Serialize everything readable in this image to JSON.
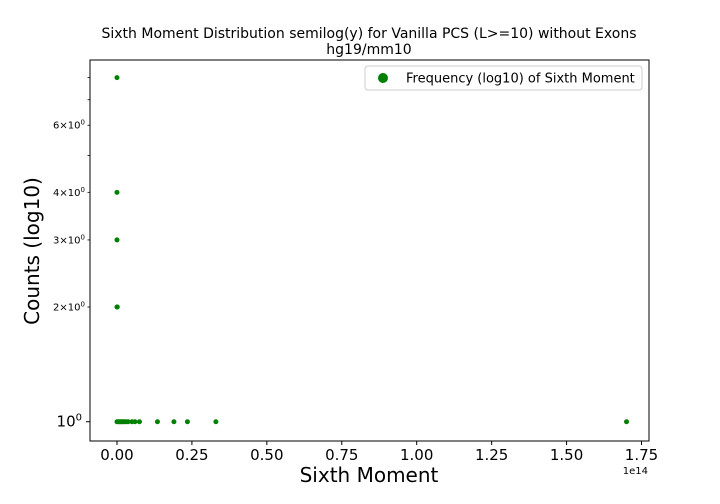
{
  "chart_data": {
    "type": "scatter",
    "title_line1": "Sixth Moment Distribution semilog(y) for Vanilla PCS (L>=10) without Exons",
    "title_line2": "hg19/mm10",
    "xlabel": "Sixth Moment",
    "ylabel": "Counts (log10)",
    "x_offset_label": "1e14",
    "x_scale_factor": 100000000000000.0,
    "yscale": "log",
    "xlim": [
      -0.09,
      1.775
    ],
    "ylim": [
      0.89,
      8.9
    ],
    "xticks": [
      0.0,
      0.25,
      0.5,
      0.75,
      1.0,
      1.25,
      1.5,
      1.75
    ],
    "xtick_labels": [
      "0.00",
      "0.25",
      "0.50",
      "0.75",
      "1.00",
      "1.25",
      "1.50",
      "1.75"
    ],
    "yticks_major": [
      {
        "value": 1,
        "base": "10",
        "exp": "0"
      }
    ],
    "yticks_minor_labeled": [
      {
        "value": 2,
        "mant": "2",
        "base": "10",
        "exp": "0"
      },
      {
        "value": 3,
        "mant": "3",
        "base": "10",
        "exp": "0"
      },
      {
        "value": 4,
        "mant": "4",
        "base": "10",
        "exp": "0"
      },
      {
        "value": 6,
        "mant": "6",
        "base": "10",
        "exp": "0"
      }
    ],
    "yticks_minor_unlabeled": [
      5,
      7,
      8
    ],
    "times_sign": "×",
    "legend": {
      "placement": "top-right",
      "label": "Frequency (log10) of Sixth Moment"
    },
    "series": [
      {
        "name": "Frequency (log10) of Sixth Moment",
        "color": "#008000",
        "points": [
          {
            "x": 0.0,
            "y": 8
          },
          {
            "x": 0.0,
            "y": 4
          },
          {
            "x": 0.0,
            "y": 3
          },
          {
            "x": 0.0,
            "y": 2
          },
          {
            "x": 0.001,
            "y": 2
          },
          {
            "x": 0.0,
            "y": 1
          },
          {
            "x": 0.004,
            "y": 1
          },
          {
            "x": 0.008,
            "y": 1
          },
          {
            "x": 0.012,
            "y": 1
          },
          {
            "x": 0.016,
            "y": 1
          },
          {
            "x": 0.02,
            "y": 1
          },
          {
            "x": 0.025,
            "y": 1
          },
          {
            "x": 0.03,
            "y": 1
          },
          {
            "x": 0.037,
            "y": 1
          },
          {
            "x": 0.05,
            "y": 1
          },
          {
            "x": 0.06,
            "y": 1
          },
          {
            "x": 0.075,
            "y": 1
          },
          {
            "x": 0.135,
            "y": 1
          },
          {
            "x": 0.19,
            "y": 1
          },
          {
            "x": 0.235,
            "y": 1
          },
          {
            "x": 0.33,
            "y": 1
          },
          {
            "x": 1.7,
            "y": 1
          }
        ]
      }
    ]
  }
}
